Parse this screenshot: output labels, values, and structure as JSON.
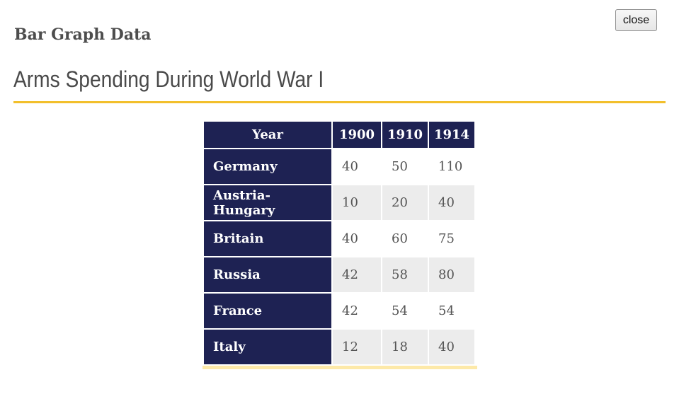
{
  "dialog": {
    "close_label": "close",
    "panel_title": "Bar Graph Data",
    "page_title": "Arms Spending During World War I"
  },
  "table": {
    "headers": [
      "Year",
      "1900",
      "1910",
      "1914"
    ],
    "rows": [
      {
        "country": "Germany",
        "values": [
          "40",
          "50",
          "110"
        ]
      },
      {
        "country": "Austria-Hungary",
        "values": [
          "10",
          "20",
          "40"
        ]
      },
      {
        "country": "Britain",
        "values": [
          "40",
          "60",
          "75"
        ]
      },
      {
        "country": "Russia",
        "values": [
          "42",
          "58",
          "80"
        ]
      },
      {
        "country": "France",
        "values": [
          "42",
          "54",
          "54"
        ]
      },
      {
        "country": "Italy",
        "values": [
          "12",
          "18",
          "40"
        ]
      }
    ]
  },
  "colors": {
    "header_bg": "#1e2253",
    "accent": "#f2bf2b",
    "accent_light": "#fde9a8",
    "stripe": "#ececec"
  }
}
